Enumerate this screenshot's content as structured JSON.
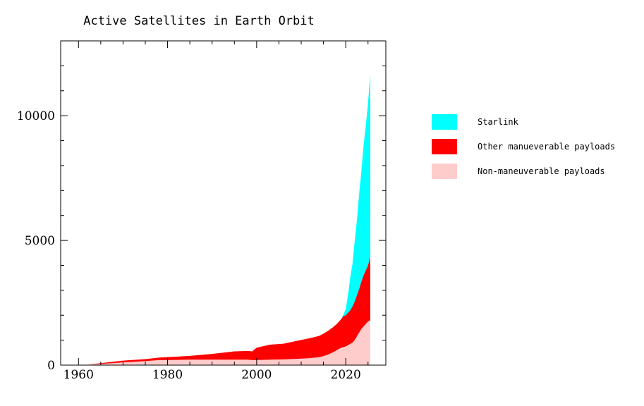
{
  "chart_data": {
    "type": "area",
    "stacked": true,
    "title": "Active Satellites in Earth Orbit",
    "xlabel": "",
    "ylabel": "",
    "xlim": [
      1956,
      2029
    ],
    "ylim": [
      0,
      13000
    ],
    "x_ticks": [
      1960,
      1980,
      2000,
      2020
    ],
    "x_tick_labels": [
      "1960",
      "1980",
      "2000",
      "2020"
    ],
    "y_ticks": [
      0,
      5000,
      10000
    ],
    "y_tick_labels": [
      "0",
      "5000",
      "10000"
    ],
    "legend_position": "right",
    "x": [
      1958,
      1962,
      1964,
      1966,
      1968,
      1970,
      1975,
      1978,
      1980,
      1985,
      1990,
      1995,
      1998,
      1999,
      2000,
      2003,
      2006,
      2009,
      2010,
      2012,
      2014,
      2015,
      2016,
      2017,
      2018,
      2019,
      2019.5,
      2020,
      2020.5,
      2021,
      2021.5,
      2022,
      2022.5,
      2023,
      2023.5,
      2024,
      2024.5,
      2025,
      2025.5
    ],
    "series": [
      {
        "name": "Non-maneuverable payloads",
        "color": "#ffcccc",
        "values": [
          10,
          20,
          40,
          60,
          80,
          110,
          160,
          200,
          200,
          220,
          220,
          220,
          220,
          200,
          200,
          220,
          230,
          250,
          260,
          280,
          320,
          360,
          420,
          500,
          600,
          700,
          720,
          750,
          800,
          850,
          900,
          1000,
          1150,
          1300,
          1450,
          1550,
          1650,
          1750,
          1800
        ]
      },
      {
        "name": "Other manueverable payloads",
        "color": "#ff0000",
        "values": [
          0,
          0,
          20,
          40,
          60,
          70,
          80,
          100,
          120,
          150,
          230,
          330,
          350,
          350,
          500,
          600,
          630,
          720,
          750,
          800,
          850,
          900,
          950,
          1000,
          1050,
          1150,
          1250,
          1250,
          1300,
          1350,
          1450,
          1550,
          1650,
          1750,
          1900,
          2050,
          2150,
          2250,
          2550
        ]
      },
      {
        "name": "Starlink",
        "color": "#00ffff",
        "values": [
          0,
          0,
          0,
          0,
          0,
          0,
          0,
          0,
          0,
          0,
          0,
          0,
          0,
          0,
          0,
          0,
          0,
          0,
          0,
          0,
          0,
          0,
          0,
          0,
          0,
          0,
          60,
          250,
          700,
          1300,
          1700,
          2400,
          3000,
          3800,
          4400,
          5200,
          5800,
          6500,
          7300
        ]
      }
    ]
  }
}
